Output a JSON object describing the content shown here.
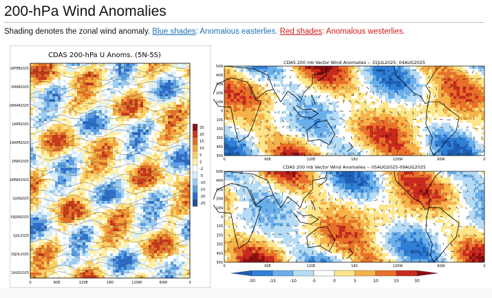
{
  "page": {
    "title": "200-hPa Wind Anomalies",
    "subtitle": {
      "intro": "Shading denotes the zonal wind anomaly. ",
      "blue_link": "Blue shades",
      "blue_text": ": Anomalous easterlies. ",
      "red_link": "Red shades",
      "red_text": ": Anomalous westerlies."
    }
  },
  "hovmoller": {
    "title": "CDAS 200-hPa U Anoms. (5N-5S)",
    "dates": [
      "16FEB2025",
      "1MAR2025",
      "16MAR2025",
      "1APR2025",
      "16APR2025",
      "1MAY2025",
      "16MAY2025",
      "1JUN2025",
      "16JUN2025",
      "1JUL2025",
      "16JUL2025",
      "1AUG2025"
    ],
    "lon_labels": [
      "0",
      "60E",
      "120E",
      "180",
      "120W",
      "60W",
      "0"
    ],
    "colorbar_labels": [
      "25",
      "20",
      "15",
      "10",
      "5",
      "2",
      "-2",
      "-5",
      "-10",
      "-15",
      "-20",
      "-25"
    ]
  },
  "map_top": {
    "title": "CDAS 200 mb Vector Wind Anomalies -- 31JUL2025- 04AUG2025",
    "lat_labels": [
      "50N",
      "40N",
      "30N",
      "20N",
      "10N",
      "0",
      "10S",
      "20S",
      "30S",
      "40S",
      "50S"
    ],
    "lon_labels": [
      "0",
      "60E",
      "120E",
      "180",
      "120W",
      "60W",
      "0"
    ]
  },
  "map_bottom": {
    "title": "CDAS 200 mb Vector Wind Anomalies -- 05AUG2025-09AUG2025",
    "lat_labels": [
      "50N",
      "40N",
      "30N",
      "20N",
      "10N",
      "0",
      "10S",
      "20S",
      "30S",
      "40S",
      "50S"
    ],
    "lon_labels": [
      "0",
      "60E",
      "120E",
      "180",
      "120W",
      "60W",
      "0"
    ]
  },
  "colorbar": {
    "labels": [
      "-30",
      "-15",
      "-10",
      "-5",
      "0",
      "5",
      "10",
      "15",
      "30"
    ],
    "colors": [
      "#1f5fb4",
      "#2f7fd6",
      "#6aaeea",
      "#b6dbf5",
      "#ffffff",
      "#fde58a",
      "#f6b24a",
      "#e8702a",
      "#c92a1e",
      "#8c1010"
    ]
  },
  "palette": {
    "hov": [
      "#2f6fc8",
      "#5b9de0",
      "#9ccbf0",
      "#d9eefb",
      "#ffffff",
      "#fff0a8",
      "#f9cf66",
      "#f1a43d",
      "#e0702a",
      "#c43a1c"
    ]
  }
}
